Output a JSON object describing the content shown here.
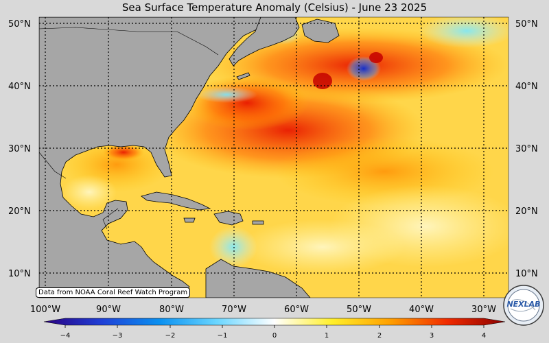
{
  "title": "Sea Surface Temperature Anomaly (Celsius) - June 23 2025",
  "credit": "Data from NOAA Coral Reef Watch Program",
  "logo_text": "NEXLAB",
  "latitude_labels": [
    "50°N",
    "40°N",
    "30°N",
    "20°N",
    "10°N"
  ],
  "longitude_labels": [
    "100°W",
    "90°W",
    "80°W",
    "70°W",
    "60°W",
    "50°W",
    "40°W",
    "30°W"
  ],
  "colorbar": {
    "ticks": [
      "−4",
      "−3",
      "−2",
      "−1",
      "0",
      "1",
      "2",
      "3",
      "4"
    ],
    "range": [
      -4,
      4
    ],
    "colors": [
      "#2a0080",
      "#1f3fd6",
      "#0a90f0",
      "#6ad6ff",
      "#ffffff",
      "#ffef2a",
      "#ffa000",
      "#f02a00",
      "#8a0000"
    ]
  },
  "colors": {
    "land": "#a6a6a6",
    "background": "#d9d9d9"
  }
}
